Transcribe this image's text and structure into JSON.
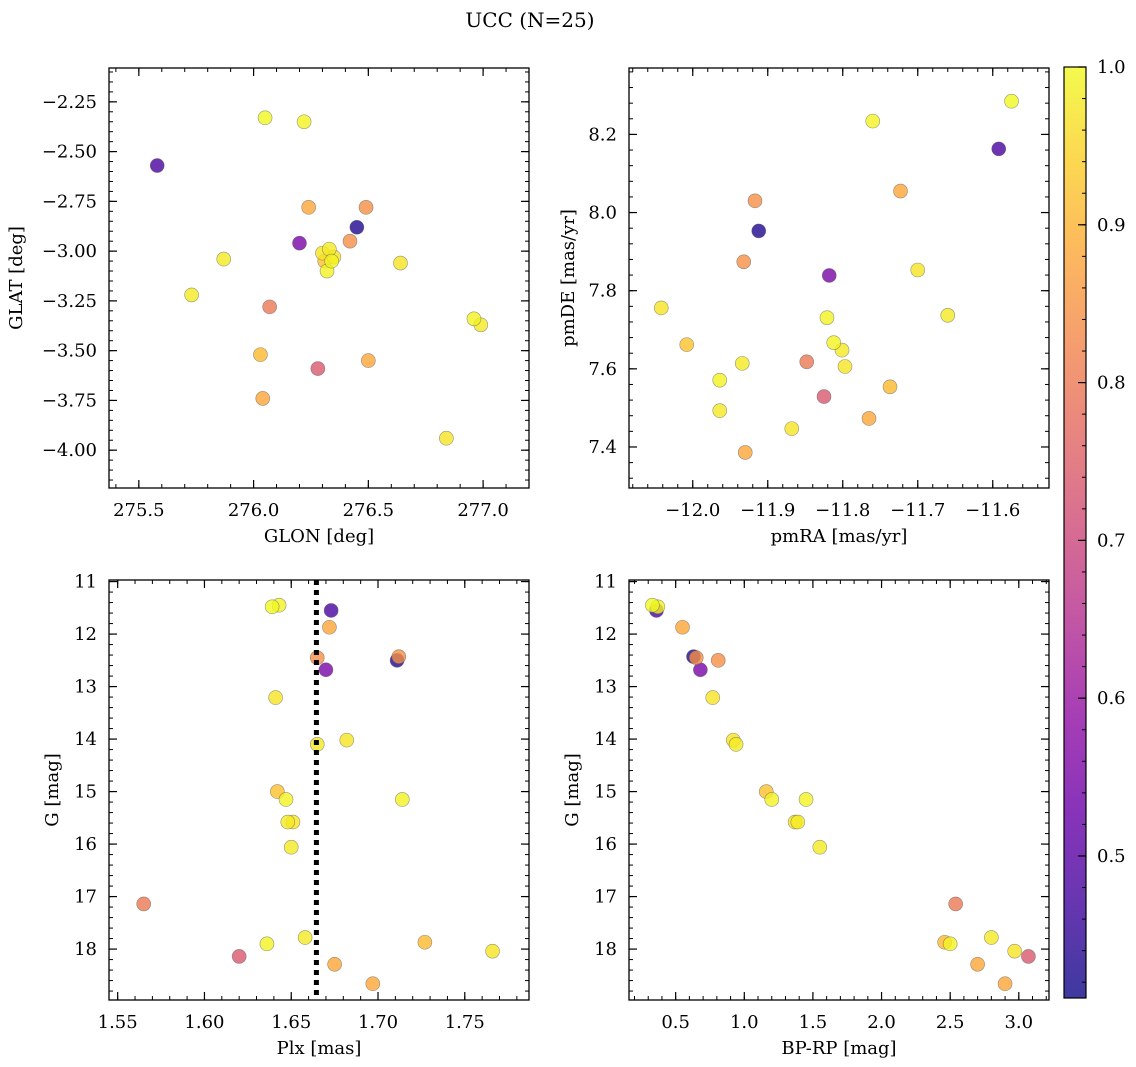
{
  "figure": {
    "title": "UCC (N=25)"
  },
  "colorbar": {
    "min": 0.41,
    "max": 1.0,
    "ticks": [
      0.5,
      0.6,
      0.7,
      0.8,
      0.9,
      1.0
    ],
    "tick_labels": [
      "0.5",
      "0.6",
      "0.7",
      "0.8",
      "0.9",
      "1.0"
    ],
    "colormap": "plasma (alpha 0.8)"
  },
  "chart_data": [
    {
      "type": "scatter",
      "xlabel": "GLON [deg]",
      "ylabel": "GLAT [deg]",
      "xlim": [
        275.37,
        277.2
      ],
      "ylim": [
        -4.19,
        -2.08
      ],
      "y_inverted": false,
      "xticks": [
        275.5,
        276.0,
        276.5,
        277.0
      ],
      "xtick_labels": [
        "275.5",
        "276.0",
        "276.5",
        "277.0"
      ],
      "yticks": [
        -2.25,
        -2.5,
        -2.75,
        -3.0,
        -3.25,
        -3.5,
        -3.75,
        -4.0
      ],
      "ytick_labels": [
        "−2.25",
        "−2.50",
        "−2.75",
        "−3.00",
        "−3.25",
        "−3.50",
        "−3.75",
        "−4.00"
      ],
      "x": [
        276.05,
        276.22,
        275.58,
        276.24,
        276.49,
        276.45,
        276.42,
        276.2,
        276.3,
        276.33,
        276.35,
        276.31,
        276.32,
        276.34,
        275.87,
        276.64,
        275.73,
        276.07,
        276.96,
        276.99,
        276.03,
        276.28,
        276.04,
        276.84,
        276.5
      ],
      "y": [
        -2.33,
        -2.35,
        -2.57,
        -2.78,
        -2.78,
        -2.88,
        -2.95,
        -2.96,
        -3.01,
        -2.99,
        -3.03,
        -3.05,
        -3.1,
        -3.05,
        -3.04,
        -3.06,
        -3.22,
        -3.28,
        -3.34,
        -3.37,
        -3.52,
        -3.59,
        -3.74,
        -3.94,
        -3.55
      ]
    },
    {
      "type": "scatter",
      "xlabel": "pmRA [mas/yr]",
      "ylabel": "pmDE [mas/yr]",
      "xlim": [
        -12.085,
        -11.525
      ],
      "ylim": [
        7.295,
        8.37
      ],
      "y_inverted": false,
      "xticks": [
        -12.0,
        -11.9,
        -11.8,
        -11.7,
        -11.6
      ],
      "xtick_labels": [
        "−12.0",
        "−11.9",
        "−11.8",
        "−11.7",
        "−11.6"
      ],
      "yticks": [
        7.4,
        7.6,
        7.8,
        8.0,
        8.2
      ],
      "ytick_labels": [
        "7.4",
        "7.6",
        "7.8",
        "8.0",
        "8.2"
      ],
      "x": [
        -11.575,
        -11.76,
        -11.592,
        -11.723,
        -11.917,
        -11.912,
        -11.932,
        -11.818,
        -11.7,
        -11.66,
        -12.042,
        -12.008,
        -11.821,
        -11.812,
        -11.801,
        -11.797,
        -11.934,
        -11.848,
        -11.964,
        -11.964,
        -11.737,
        -11.825,
        -11.765,
        -11.868,
        -11.93
      ],
      "y": [
        8.285,
        8.234,
        8.163,
        8.055,
        8.03,
        7.953,
        7.874,
        7.839,
        7.853,
        7.737,
        7.756,
        7.662,
        7.731,
        7.667,
        7.648,
        7.606,
        7.614,
        7.618,
        7.571,
        7.493,
        7.554,
        7.529,
        7.473,
        7.447,
        7.386
      ]
    },
    {
      "type": "scatter",
      "xlabel": "Plx [mas]",
      "ylabel": "G [mag]",
      "xlim": [
        1.545,
        1.787
      ],
      "ylim": [
        18.97,
        10.97
      ],
      "y_inverted": true,
      "vline": {
        "x": 1.6645,
        "style": "dotted",
        "color": "#000000"
      },
      "xticks": [
        1.55,
        1.6,
        1.65,
        1.7,
        1.75
      ],
      "xtick_labels": [
        "1.55",
        "1.60",
        "1.65",
        "1.70",
        "1.75"
      ],
      "yticks": [
        11,
        12,
        13,
        14,
        15,
        16,
        17,
        18
      ],
      "ytick_labels": [
        "11",
        "12",
        "13",
        "14",
        "15",
        "16",
        "17",
        "18"
      ],
      "x": [
        1.639,
        1.643,
        1.673,
        1.672,
        1.665,
        1.711,
        1.712,
        1.67,
        1.641,
        1.665,
        1.682,
        1.642,
        1.647,
        1.714,
        1.648,
        1.651,
        1.65,
        1.565,
        1.636,
        1.658,
        1.727,
        1.62,
        1.675,
        1.766,
        1.697
      ],
      "y": [
        11.48,
        11.45,
        11.55,
        11.87,
        12.45,
        12.5,
        12.43,
        12.68,
        13.21,
        14.1,
        14.02,
        15.0,
        15.15,
        15.15,
        15.58,
        15.58,
        16.06,
        17.14,
        17.9,
        17.78,
        17.87,
        18.14,
        18.29,
        18.04,
        18.66
      ]
    },
    {
      "type": "scatter",
      "xlabel": "BP-RP [mag]",
      "ylabel": "G [mag]",
      "xlim": [
        0.16,
        3.22
      ],
      "ylim": [
        18.97,
        10.97
      ],
      "y_inverted": true,
      "xticks": [
        0.5,
        1.0,
        1.5,
        2.0,
        2.5,
        3.0
      ],
      "xtick_labels": [
        "0.5",
        "1.0",
        "1.5",
        "2.0",
        "2.5",
        "3.0"
      ],
      "yticks": [
        11,
        12,
        13,
        14,
        15,
        16,
        17,
        18
      ],
      "ytick_labels": [
        "11",
        "12",
        "13",
        "14",
        "15",
        "16",
        "17",
        "18"
      ],
      "x": [
        0.33,
        0.37,
        0.36,
        0.55,
        0.65,
        0.63,
        0.81,
        0.68,
        0.77,
        0.94,
        0.92,
        1.16,
        1.2,
        1.45,
        1.39,
        1.37,
        1.55,
        2.54,
        2.5,
        2.8,
        2.46,
        3.07,
        2.7,
        2.97,
        2.9
      ],
      "y": [
        11.45,
        11.48,
        11.55,
        11.87,
        12.45,
        12.43,
        12.5,
        12.68,
        13.21,
        14.1,
        14.02,
        15.0,
        15.15,
        15.15,
        15.58,
        15.58,
        16.06,
        17.14,
        17.9,
        17.78,
        17.87,
        18.14,
        18.29,
        18.04,
        18.66
      ]
    }
  ],
  "membership_probability": [
    1.0,
    0.99,
    0.48,
    0.88,
    0.84,
    0.43,
    0.84,
    0.55,
    0.97,
    0.98,
    0.97,
    0.92,
    0.99,
    0.99,
    0.98,
    0.97,
    0.98,
    0.8,
    0.99,
    0.98,
    0.91,
    0.74,
    0.88,
    0.97,
    0.88
  ]
}
